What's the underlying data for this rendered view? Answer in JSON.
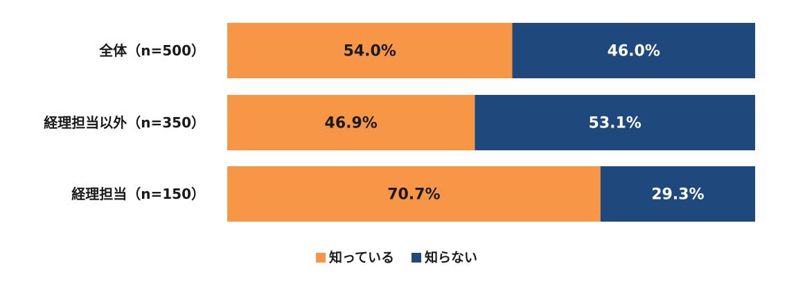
{
  "chart_data": {
    "type": "bar",
    "orientation": "horizontal",
    "stacked": true,
    "percent_stacked": true,
    "categories": [
      "全体（n=500）",
      "経理担当以外（n=350）",
      "経理担当（n=150）"
    ],
    "series": [
      {
        "name": "知っている",
        "values": [
          54.0,
          46.9,
          70.7
        ],
        "labels": [
          "54.0%",
          "46.9%",
          "70.7%"
        ],
        "color": "#F79646",
        "label_color": "#1a1a1a"
      },
      {
        "name": "知らない",
        "values": [
          46.0,
          53.1,
          29.3
        ],
        "labels": [
          "46.0%",
          "53.1%",
          "29.3%"
        ],
        "color": "#1F497D",
        "label_color": "#ffffff"
      }
    ],
    "xlim": [
      0,
      100
    ],
    "grid": false,
    "legend_position": "bottom"
  }
}
